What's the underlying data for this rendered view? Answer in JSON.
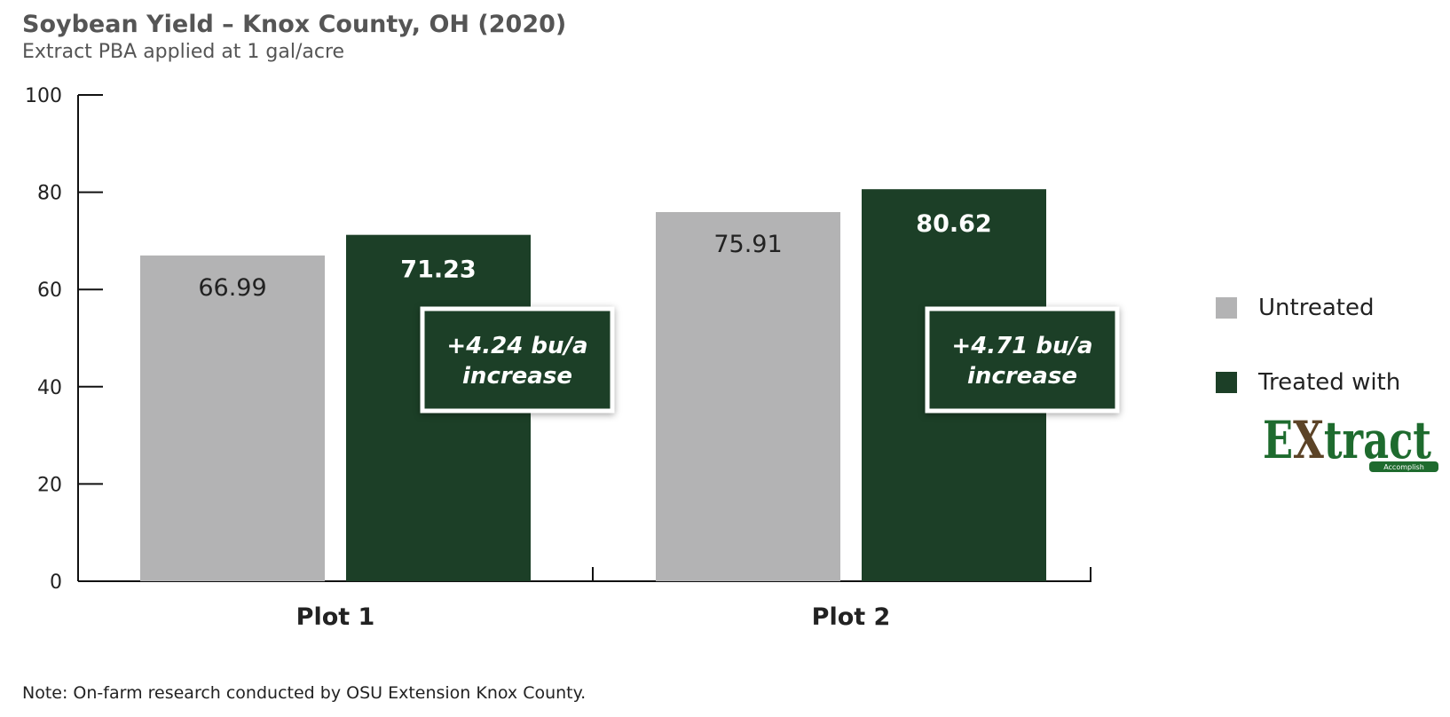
{
  "title": "Soybean Yield – Knox County, OH (2020)",
  "subtitle": "Extract PBA applied at 1 gal/acre",
  "note": "Note: On-farm research conducted by OSU Extension Knox County.",
  "colors": {
    "untreated": "#b3b3b4",
    "treated": "#1c3f27",
    "axis": "#111111",
    "logo_green": "#1e6b2e",
    "logo_brown": "#5c4327"
  },
  "legend": {
    "untreated": "Untreated",
    "treated": "Treated with",
    "logo_text": "Extract",
    "logo_small": "POWERED BY Accomplish"
  },
  "chart_data": {
    "type": "bar",
    "title": "Soybean Yield – Knox County, OH (2020)",
    "subtitle": "Extract PBA applied at 1 gal/acre",
    "categories": [
      "Plot 1",
      "Plot 2"
    ],
    "series": [
      {
        "name": "Untreated",
        "values": [
          66.99,
          75.91
        ],
        "labels": [
          "66.99",
          "75.91"
        ]
      },
      {
        "name": "Treated with Extract",
        "values": [
          71.23,
          80.62
        ],
        "labels": [
          "71.23",
          "80.62"
        ]
      }
    ],
    "annotations": [
      {
        "category": "Plot 1",
        "line1": "+4.24 bu/a",
        "line2": "increase"
      },
      {
        "category": "Plot 2",
        "line1": "+4.71 bu/a",
        "line2": "increase"
      }
    ],
    "ylim": [
      0,
      100
    ],
    "yticks": [
      0,
      20,
      40,
      60,
      80,
      100
    ],
    "grid": false,
    "legend_position": "right"
  }
}
